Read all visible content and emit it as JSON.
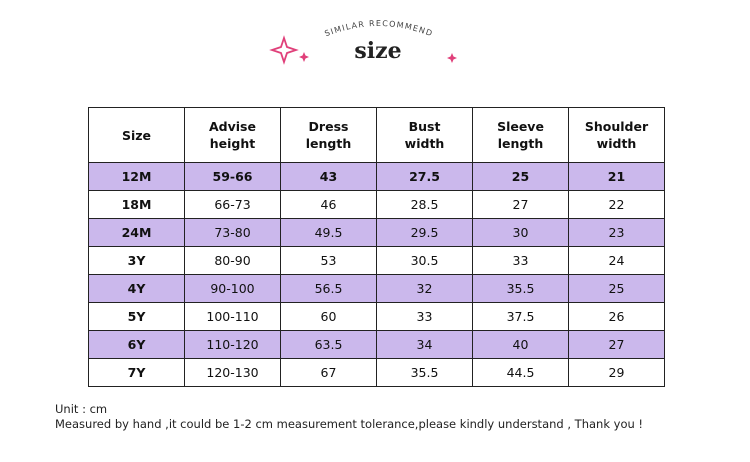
{
  "header": {
    "subtitle": "SIMILAR RECOMMEND",
    "title": "size"
  },
  "table": {
    "columns": [
      "Size",
      "Advise height",
      "Dress length",
      "Bust width",
      "Sleeve length",
      "Shoulder width"
    ],
    "rows": [
      [
        "12M",
        "59-66",
        "43",
        "27.5",
        "25",
        "21"
      ],
      [
        "18M",
        "66-73",
        "46",
        "28.5",
        "27",
        "22"
      ],
      [
        "24M",
        "73-80",
        "49.5",
        "29.5",
        "30",
        "23"
      ],
      [
        "3Y",
        "80-90",
        "53",
        "30.5",
        "33",
        "24"
      ],
      [
        "4Y",
        "90-100",
        "56.5",
        "32",
        "35.5",
        "25"
      ],
      [
        "5Y",
        "100-110",
        "60",
        "33",
        "37.5",
        "26"
      ],
      [
        "6Y",
        "110-120",
        "63.5",
        "34",
        "40",
        "27"
      ],
      [
        "7Y",
        "120-130",
        "67",
        "35.5",
        "44.5",
        "29"
      ]
    ]
  },
  "notes": [
    "Unit : cm",
    "Measured by hand ,it could be 1-2 cm measurement tolerance,please kindly understand , Thank you !"
  ]
}
